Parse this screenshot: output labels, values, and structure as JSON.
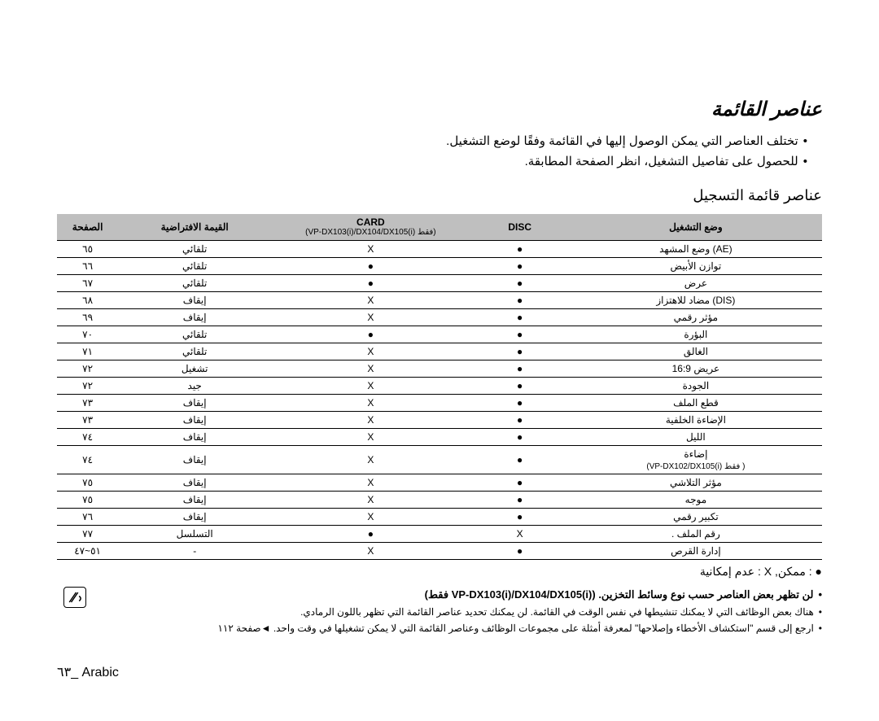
{
  "title": "عناصر القائمة",
  "bullets": [
    "تختلف العناصر التي يمكن الوصول إليها في القائمة وفقًا لوضع التشغيل.",
    "للحصول على تفاصيل التشغيل، انظر الصفحة المطابقة."
  ],
  "subtitle": "عناصر قائمة التسجيل",
  "headers": {
    "page": "الصفحة",
    "default": "القيمة الافتراضية",
    "card": "CARD",
    "card_sub": "(VP-DX103(i)/DX104/DX105(i) فقط)",
    "disc": "DISC",
    "mode": "وضع التشغيل"
  },
  "rows": [
    {
      "page": "٦٥",
      "default": "تلقائي",
      "card": "X",
      "disc": "●",
      "mode": "وضع المشهد (AE)"
    },
    {
      "page": "٦٦",
      "default": "تلقائي",
      "card": "●",
      "disc": "●",
      "mode": "توازن الأبيض"
    },
    {
      "page": "٦٧",
      "default": "تلقائي",
      "card": "●",
      "disc": "●",
      "mode": "عرض"
    },
    {
      "page": "٦٨",
      "default": "إيقاف",
      "card": "X",
      "disc": "●",
      "mode": "مضاد للاهتزاز (DIS)"
    },
    {
      "page": "٦٩",
      "default": "إيقاف",
      "card": "X",
      "disc": "●",
      "mode": "مؤثر رقمي"
    },
    {
      "page": "٧٠",
      "default": "تلقائي",
      "card": "●",
      "disc": "●",
      "mode": "البؤرة"
    },
    {
      "page": "٧١",
      "default": "تلقائي",
      "card": "X",
      "disc": "●",
      "mode": "الغالق"
    },
    {
      "page": "٧٢",
      "default": "تشغيل",
      "card": "X",
      "disc": "●",
      "mode": "16:9 عريض"
    },
    {
      "page": "٧٢",
      "default": "جيد",
      "card": "X",
      "disc": "●",
      "mode": "الجودة"
    },
    {
      "page": "٧٣",
      "default": "إيقاف",
      "card": "X",
      "disc": "●",
      "mode": "قطع الملف"
    },
    {
      "page": "٧٣",
      "default": "إيقاف",
      "card": "X",
      "disc": "●",
      "mode": "الإضاءة الخلفية"
    },
    {
      "page": "٧٤",
      "default": "إيقاف",
      "card": "X",
      "disc": "●",
      "mode": "الليل"
    },
    {
      "page": "٧٤",
      "default": "إيقاف",
      "card": "X",
      "disc": "●",
      "mode": "إضاءة\n(VP-DX102/DX105(i) فقط )"
    },
    {
      "page": "٧٥",
      "default": "إيقاف",
      "card": "X",
      "disc": "●",
      "mode": "مؤثر التلاشي"
    },
    {
      "page": "٧٥",
      "default": "إيقاف",
      "card": "X",
      "disc": "●",
      "mode": "موجه"
    },
    {
      "page": "٧٦",
      "default": "إيقاف",
      "card": "X",
      "disc": "●",
      "mode": "تكبير رقمي"
    },
    {
      "page": "٧٧",
      "default": "التسلسل",
      "card": "●",
      "disc": "X",
      "mode": ". رقم الملف"
    },
    {
      "page": "٥١~٤٧",
      "default": "-",
      "card": "X",
      "disc": "●",
      "mode": "إدارة القرص"
    }
  ],
  "legend": "● : ممكن, X : عدم إمكانية",
  "notes": {
    "n1": "لن تظهر بعض العناصر حسب نوع وسائط التخزين. (VP-DX103(i)/DX104/DX105(i) فقط)",
    "n2": "هناك بعض الوظائف التي لا يمكنك تنشيطها في نفس الوقت في القائمة. لن يمكنك تحديد عناصر القائمة التي تظهر باللون الرمادي.",
    "n3": "ارجع إلى قسم \"استكشاف الأخطاء وإصلاحها\" لمعرفة أمثلة على مجموعات الوظائف وعناصر القائمة التي لا يمكن تشغيلها في وقت واحد. ◄صفحة ١١٢"
  },
  "footer": "٦٣_ Arabic",
  "colors": {
    "header_bg": "#bfbfbf",
    "border": "#000000",
    "text": "#000000",
    "bg": "#ffffff"
  },
  "column_widths_pct": [
    8,
    20,
    26,
    13,
    33
  ]
}
